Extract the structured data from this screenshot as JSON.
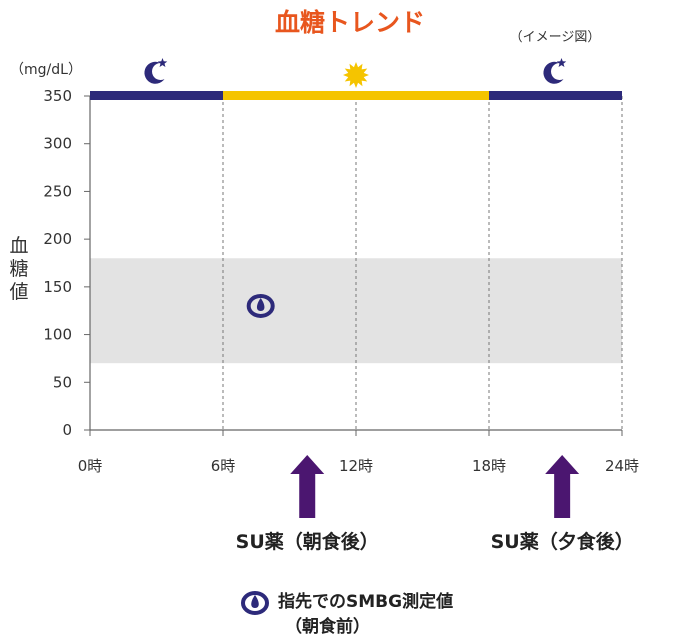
{
  "chart_data": {
    "type": "scatter",
    "title": "血糖トレンド",
    "subtitle": "（イメージ図）",
    "unit_label": "（mg/dL）",
    "ylabel_chars": [
      "血",
      "糖",
      "値"
    ],
    "xlim": [
      0,
      24
    ],
    "ylim": [
      0,
      350
    ],
    "y_ticks": [
      0,
      50,
      100,
      150,
      200,
      250,
      300,
      350
    ],
    "x_ticks": [
      0,
      6,
      12,
      18,
      24
    ],
    "x_tick_labels": [
      "0時",
      "6時",
      "12時",
      "18時",
      "24時"
    ],
    "target_range": [
      70,
      180
    ],
    "target_color": "#e3e3e3",
    "day_bar": [
      {
        "from": 0,
        "to": 6,
        "phase": "night",
        "color": "#2d2a7a",
        "icon": "moon-star-icon"
      },
      {
        "from": 6,
        "to": 18,
        "phase": "day",
        "color": "#f5c400",
        "icon": "sun-icon"
      },
      {
        "from": 18,
        "to": 24,
        "phase": "night",
        "color": "#2d2a7a",
        "icon": "moon-star-icon"
      }
    ],
    "points": [
      {
        "x": 7.7,
        "y": 130
      }
    ],
    "point_color": "#2d2a7a",
    "medications": [
      {
        "x": 9.8,
        "label": "SU薬（朝食後）"
      },
      {
        "x": 21.3,
        "label": "SU薬（夕食後）"
      }
    ],
    "arrow_color": "#4b1670",
    "legend": {
      "icon": "drop-marker-icon",
      "line1": "指先でのSMBG測定値",
      "line2": "（朝食前）"
    }
  }
}
